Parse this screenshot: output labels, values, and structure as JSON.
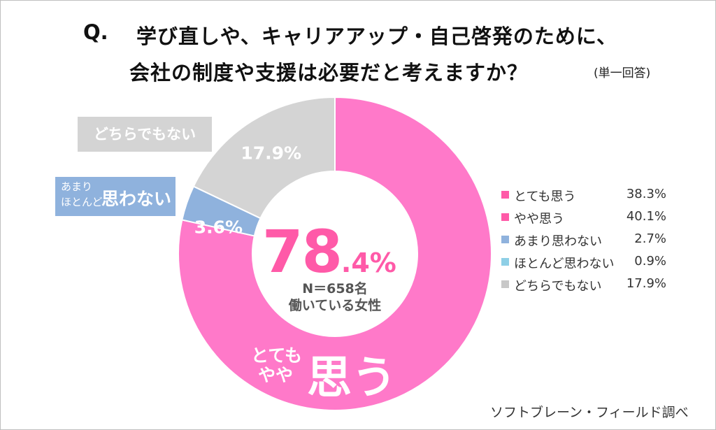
{
  "chart_data": {
    "type": "pie",
    "title_q": "Q.",
    "title_line1": "学び直しや、キャリアアップ・自己啓発のために、",
    "title_line2": "会社の制度や支援は必要だと考えますか？",
    "note": "(単一回答)",
    "slices": [
      {
        "name": "とても思う",
        "value": 38.3,
        "color": "#ff79c9"
      },
      {
        "name": "やや思う",
        "value": 40.1,
        "color": "#ff79c9"
      },
      {
        "name": "あまり思わない",
        "value": 2.7,
        "color": "#8fb2dd"
      },
      {
        "name": "ほとんど思わない",
        "value": 0.9,
        "color": "#8fb2dd"
      },
      {
        "name": "どちらでもない",
        "value": 17.9,
        "color": "#d4d4d4"
      }
    ],
    "legend": [
      {
        "label": "とても思う",
        "value": "38.3%",
        "color": "#ff5aa8"
      },
      {
        "label": "やや思う",
        "value": "40.1%",
        "color": "#ff5aa8"
      },
      {
        "label": "あまり思わない",
        "value": "2.7%",
        "color": "#8fb2dd"
      },
      {
        "label": "ほとんど思わない",
        "value": "0.9%",
        "color": "#8ecfe6"
      },
      {
        "label": "どちらでもない",
        "value": "17.9%",
        "color": "#c8c8c8"
      }
    ],
    "slice_labels": {
      "neither": "17.9%",
      "not": "3.6%"
    },
    "callouts": {
      "neither": "どちらでもない",
      "not_small_1": "あまり",
      "not_small_2": "ほとんど",
      "not_big": "思わない",
      "agree_small_1": "とても",
      "agree_small_2": "やや",
      "agree_big": "思う"
    },
    "center": {
      "int": "78",
      "dec": ".4%",
      "n": "N＝658名",
      "sub": "働いている女性"
    },
    "source": "ソフトブレーン・フィールド調べ"
  }
}
